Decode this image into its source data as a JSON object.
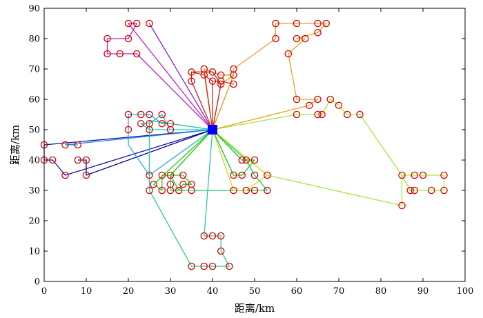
{
  "chart_data": {
    "type": "scatter",
    "xlabel": "距离/km",
    "ylabel": "距离/km",
    "xlim": [
      0,
      100
    ],
    "ylim": [
      0,
      90
    ],
    "xticks": [
      0,
      10,
      20,
      30,
      40,
      50,
      60,
      70,
      80,
      90,
      100
    ],
    "yticks": [
      0,
      10,
      20,
      30,
      40,
      50,
      60,
      70,
      80,
      90
    ],
    "grid": false,
    "depot": {
      "x": 40,
      "y": 50,
      "color": "#0000ff"
    },
    "marker_color": "#dd0000",
    "routes": [
      {
        "color": "#00008b",
        "points": [
          [
            40,
            50
          ],
          [
            10,
            35
          ],
          [
            10,
            40
          ],
          [
            8,
            40
          ]
        ]
      },
      {
        "color": "#1010b0",
        "points": [
          [
            40,
            50
          ],
          [
            5,
            35
          ],
          [
            2,
            40
          ],
          [
            0,
            40
          ],
          [
            0,
            45
          ],
          [
            40,
            50
          ]
        ]
      },
      {
        "color": "#1e90d8",
        "points": [
          [
            40,
            50
          ],
          [
            5,
            45
          ],
          [
            8,
            45
          ]
        ]
      },
      {
        "color": "#2aa8e0",
        "points": [
          [
            40,
            50
          ],
          [
            25,
            35
          ],
          [
            20,
            45
          ],
          [
            20,
            50
          ],
          [
            20,
            55
          ],
          [
            23,
            55
          ],
          [
            25,
            55
          ],
          [
            28,
            52
          ],
          [
            30,
            52
          ],
          [
            40,
            50
          ]
        ]
      },
      {
        "color": "#20c4c4",
        "points": [
          [
            40,
            50
          ],
          [
            30,
            50
          ],
          [
            28,
            55
          ],
          [
            25,
            52
          ],
          [
            23,
            52
          ],
          [
            25,
            50
          ],
          [
            40,
            50
          ]
        ]
      },
      {
        "color": "#2ec8a0",
        "points": [
          [
            40,
            50
          ],
          [
            25,
            53
          ],
          [
            25,
            30
          ],
          [
            35,
            5
          ],
          [
            38,
            5
          ],
          [
            40,
            5
          ],
          [
            44,
            5
          ],
          [
            42,
            10
          ],
          [
            42,
            15
          ],
          [
            40,
            15
          ],
          [
            38,
            15
          ],
          [
            40,
            50
          ]
        ]
      },
      {
        "color": "#1ed06a",
        "points": [
          [
            40,
            50
          ],
          [
            30,
            35
          ],
          [
            30,
            32
          ],
          [
            30,
            30
          ],
          [
            35,
            30
          ],
          [
            45,
            30
          ],
          [
            50,
            30
          ],
          [
            53,
            30
          ],
          [
            50,
            35
          ],
          [
            48,
            40
          ],
          [
            40,
            50
          ]
        ]
      },
      {
        "color": "#10c020",
        "points": [
          [
            40,
            50
          ],
          [
            45,
            35
          ],
          [
            47,
            35
          ],
          [
            50,
            40
          ],
          [
            47,
            40
          ],
          [
            40,
            50
          ]
        ]
      },
      {
        "color": "#22cc11",
        "points": [
          [
            40,
            50
          ],
          [
            26,
            32
          ],
          [
            28,
            30
          ],
          [
            28,
            35
          ],
          [
            33,
            35
          ],
          [
            35,
            32
          ],
          [
            33,
            32
          ],
          [
            32,
            30
          ],
          [
            30,
            35
          ],
          [
            40,
            50
          ]
        ]
      },
      {
        "color": "#a8e63c",
        "points": [
          [
            40,
            50
          ],
          [
            53,
            35
          ],
          [
            85,
            25
          ],
          [
            85,
            35
          ],
          [
            88,
            35
          ],
          [
            90,
            35
          ],
          [
            95,
            35
          ],
          [
            95,
            30
          ],
          [
            92,
            30
          ],
          [
            88,
            30
          ],
          [
            87,
            30
          ],
          [
            85,
            35
          ],
          [
            75,
            55
          ],
          [
            72,
            55
          ],
          [
            70,
            58
          ],
          [
            68,
            60
          ],
          [
            66,
            55
          ],
          [
            65,
            55
          ],
          [
            60,
            55
          ],
          [
            40,
            50
          ]
        ]
      },
      {
        "color": "#c8dc1e",
        "points": [
          [
            40,
            50
          ],
          [
            53,
            35
          ],
          [
            48,
            30
          ],
          [
            45,
            30
          ],
          [
            40,
            50
          ]
        ]
      },
      {
        "color": "#e8a020",
        "points": [
          [
            40,
            50
          ],
          [
            63,
            58
          ],
          [
            65,
            60
          ],
          [
            60,
            60
          ],
          [
            58,
            75
          ],
          [
            62,
            80
          ],
          [
            60,
            80
          ],
          [
            65,
            82
          ],
          [
            67,
            85
          ],
          [
            65,
            85
          ],
          [
            60,
            85
          ],
          [
            55,
            85
          ],
          [
            55,
            80
          ],
          [
            45,
            70
          ],
          [
            45,
            68
          ],
          [
            42,
            65
          ],
          [
            40,
            50
          ]
        ]
      },
      {
        "color": "#e89020",
        "points": [
          [
            40,
            50
          ],
          [
            38,
            70
          ],
          [
            40,
            69
          ],
          [
            42,
            68
          ],
          [
            45,
            68
          ],
          [
            40,
            50
          ]
        ]
      },
      {
        "color": "#d03018",
        "points": [
          [
            40,
            50
          ],
          [
            40,
            66
          ],
          [
            42,
            66
          ],
          [
            45,
            65
          ],
          [
            42,
            66
          ],
          [
            40,
            66
          ],
          [
            38,
            68
          ],
          [
            35,
            69
          ],
          [
            38,
            69
          ],
          [
            40,
            50
          ]
        ]
      },
      {
        "color": "#cc2020",
        "points": [
          [
            40,
            50
          ],
          [
            35,
            66
          ],
          [
            35,
            69
          ],
          [
            40,
            69
          ],
          [
            42,
            65
          ],
          [
            40,
            50
          ]
        ]
      },
      {
        "color": "#c020c0",
        "points": [
          [
            40,
            50
          ],
          [
            20,
            85
          ],
          [
            22,
            85
          ],
          [
            20,
            80
          ],
          [
            15,
            80
          ],
          [
            15,
            75
          ],
          [
            18,
            75
          ],
          [
            22,
            75
          ],
          [
            40,
            50
          ]
        ]
      },
      {
        "color": "#9020d0",
        "points": [
          [
            40,
            50
          ],
          [
            25,
            85
          ],
          [
            40,
            50
          ]
        ]
      }
    ],
    "customers": [
      [
        20,
        85
      ],
      [
        22,
        85
      ],
      [
        25,
        85
      ],
      [
        15,
        80
      ],
      [
        20,
        80
      ],
      [
        15,
        75
      ],
      [
        18,
        75
      ],
      [
        22,
        75
      ],
      [
        55,
        85
      ],
      [
        60,
        85
      ],
      [
        65,
        85
      ],
      [
        67,
        85
      ],
      [
        55,
        80
      ],
      [
        60,
        80
      ],
      [
        62,
        80
      ],
      [
        65,
        82
      ],
      [
        58,
        75
      ],
      [
        35,
        69
      ],
      [
        38,
        70
      ],
      [
        40,
        69
      ],
      [
        42,
        68
      ],
      [
        45,
        70
      ],
      [
        38,
        68
      ],
      [
        45,
        68
      ],
      [
        35,
        66
      ],
      [
        40,
        66
      ],
      [
        42,
        66
      ],
      [
        42,
        65
      ],
      [
        45,
        65
      ],
      [
        60,
        60
      ],
      [
        65,
        60
      ],
      [
        63,
        58
      ],
      [
        68,
        60
      ],
      [
        70,
        58
      ],
      [
        60,
        55
      ],
      [
        65,
        55
      ],
      [
        66,
        55
      ],
      [
        72,
        55
      ],
      [
        75,
        55
      ],
      [
        20,
        55
      ],
      [
        23,
        55
      ],
      [
        25,
        55
      ],
      [
        28,
        55
      ],
      [
        20,
        50
      ],
      [
        23,
        52
      ],
      [
        25,
        52
      ],
      [
        25,
        50
      ],
      [
        28,
        52
      ],
      [
        30,
        52
      ],
      [
        30,
        50
      ],
      [
        0,
        45
      ],
      [
        5,
        45
      ],
      [
        8,
        45
      ],
      [
        0,
        40
      ],
      [
        2,
        40
      ],
      [
        8,
        40
      ],
      [
        10,
        40
      ],
      [
        5,
        35
      ],
      [
        10,
        35
      ],
      [
        25,
        35
      ],
      [
        28,
        35
      ],
      [
        30,
        35
      ],
      [
        33,
        35
      ],
      [
        26,
        32
      ],
      [
        30,
        32
      ],
      [
        33,
        32
      ],
      [
        35,
        32
      ],
      [
        25,
        30
      ],
      [
        28,
        30
      ],
      [
        30,
        30
      ],
      [
        32,
        30
      ],
      [
        35,
        30
      ],
      [
        47,
        40
      ],
      [
        48,
        40
      ],
      [
        50,
        40
      ],
      [
        45,
        35
      ],
      [
        47,
        35
      ],
      [
        50,
        35
      ],
      [
        53,
        35
      ],
      [
        45,
        30
      ],
      [
        48,
        30
      ],
      [
        50,
        30
      ],
      [
        53,
        30
      ],
      [
        85,
        35
      ],
      [
        88,
        35
      ],
      [
        90,
        35
      ],
      [
        95,
        35
      ],
      [
        87,
        30
      ],
      [
        88,
        30
      ],
      [
        92,
        30
      ],
      [
        95,
        30
      ],
      [
        85,
        25
      ],
      [
        38,
        15
      ],
      [
        40,
        15
      ],
      [
        42,
        15
      ],
      [
        42,
        10
      ],
      [
        35,
        5
      ],
      [
        38,
        5
      ],
      [
        40,
        5
      ],
      [
        44,
        5
      ]
    ]
  }
}
